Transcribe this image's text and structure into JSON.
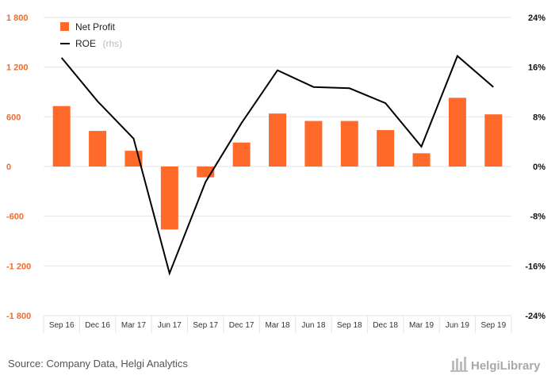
{
  "chart_data": {
    "type": "bar",
    "categories": [
      "Sep 16",
      "Dec 16",
      "Mar 17",
      "Jun 17",
      "Sep 17",
      "Dec 17",
      "Mar 18",
      "Jun 18",
      "Sep 18",
      "Dec 18",
      "Mar 19",
      "Jun 19",
      "Sep 19"
    ],
    "series": [
      {
        "name": "Net Profit",
        "type": "bar",
        "axis": "left",
        "color": "#ff6a2b",
        "values": [
          730,
          430,
          190,
          -760,
          -130,
          290,
          640,
          550,
          550,
          440,
          160,
          830,
          630
        ]
      },
      {
        "name": "ROE",
        "type": "line",
        "axis": "right",
        "color": "#000000",
        "values": [
          17.5,
          10.5,
          4.5,
          -17.2,
          -2.5,
          7.0,
          15.5,
          12.8,
          12.6,
          10.2,
          3.2,
          17.8,
          12.8
        ]
      }
    ],
    "legend": {
      "bar_label": "Net Profit",
      "line_label": "ROE",
      "line_suffix": "(rhs)",
      "position": "top-left"
    },
    "y_left": {
      "ticks": [
        1800,
        1200,
        600,
        0,
        -600,
        -1200,
        -1800
      ],
      "tick_labels": [
        "1 800",
        "1 200",
        "600",
        "0",
        "-600",
        "-1 200",
        "-1 800"
      ],
      "range": [
        -1800,
        1800
      ]
    },
    "y_right": {
      "ticks": [
        24,
        16,
        8,
        0,
        -8,
        -16,
        -24
      ],
      "tick_labels": [
        "24%",
        "16%",
        "8%",
        "0%",
        "-8%",
        "-16%",
        "-24%"
      ],
      "range": [
        -24,
        24
      ]
    },
    "grid": true,
    "colors": {
      "bar": "#ff6a2b",
      "line": "#000000",
      "grid": "#e6e6e6",
      "left_ticks": "#f26b2a"
    }
  },
  "footer": {
    "source": "Source: Company Data, Helgi Analytics",
    "logo": "HelgiLibrary"
  }
}
